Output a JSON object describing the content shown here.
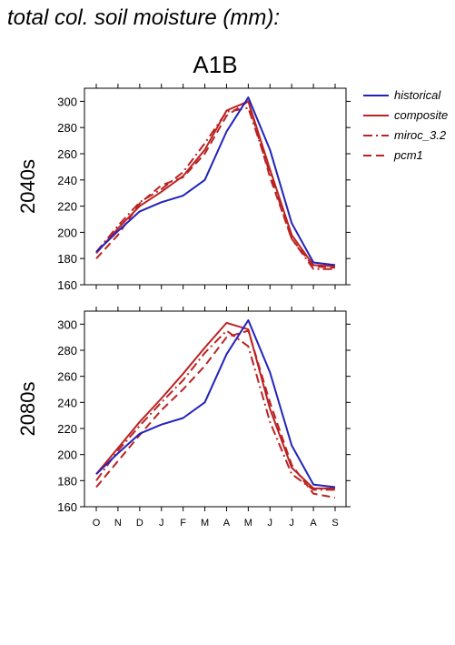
{
  "title": "total col. soil moisture (mm):",
  "scenario": "A1B",
  "months": [
    "O",
    "N",
    "D",
    "J",
    "F",
    "M",
    "A",
    "M",
    "J",
    "J",
    "A",
    "S"
  ],
  "colors": {
    "historical": "#2222bb",
    "model": "#bb2222"
  },
  "legend": [
    {
      "name": "historical",
      "color": "#2222bb",
      "dash": "solid"
    },
    {
      "name": "composite",
      "color": "#bb2222",
      "dash": "solid"
    },
    {
      "name": "miroc_3.2",
      "color": "#bb2222",
      "dash": "dashdot"
    },
    {
      "name": "pcm1",
      "color": "#bb2222",
      "dash": "dash"
    }
  ],
  "chart_data": [
    {
      "type": "line",
      "row_label": "2040s",
      "categories": [
        "O",
        "N",
        "D",
        "J",
        "F",
        "M",
        "A",
        "M",
        "J",
        "J",
        "A",
        "S"
      ],
      "ylim": [
        160,
        310
      ],
      "yticks": [
        160,
        180,
        200,
        220,
        240,
        260,
        280,
        300
      ],
      "series": [
        {
          "name": "historical",
          "values": [
            185,
            201,
            216,
            223,
            228,
            240,
            277,
            303,
            263,
            207,
            177,
            175
          ]
        },
        {
          "name": "composite",
          "values": [
            184,
            203,
            220,
            231,
            243,
            263,
            293,
            300,
            248,
            198,
            175,
            174
          ]
        },
        {
          "name": "miroc_3.2",
          "values": [
            185,
            205,
            223,
            233,
            246,
            268,
            292,
            295,
            245,
            195,
            172,
            172
          ]
        },
        {
          "name": "pcm1",
          "values": [
            180,
            198,
            222,
            236,
            242,
            260,
            289,
            300,
            242,
            195,
            174,
            173
          ]
        }
      ]
    },
    {
      "type": "line",
      "row_label": "2080s",
      "categories": [
        "O",
        "N",
        "D",
        "J",
        "F",
        "M",
        "A",
        "M",
        "J",
        "J",
        "A",
        "S"
      ],
      "ylim": [
        160,
        310
      ],
      "yticks": [
        160,
        180,
        200,
        220,
        240,
        260,
        280,
        300
      ],
      "series": [
        {
          "name": "historical",
          "values": [
            185,
            201,
            216,
            223,
            228,
            240,
            277,
            303,
            263,
            207,
            177,
            175
          ]
        },
        {
          "name": "composite",
          "values": [
            185,
            205,
            225,
            243,
            262,
            282,
            301,
            296,
            235,
            190,
            174,
            174
          ]
        },
        {
          "name": "miroc_3.2",
          "values": [
            180,
            203,
            222,
            240,
            257,
            278,
            295,
            283,
            225,
            185,
            173,
            173
          ]
        },
        {
          "name": "pcm1",
          "values": [
            175,
            195,
            215,
            234,
            250,
            268,
            290,
            295,
            240,
            192,
            170,
            167
          ]
        }
      ]
    }
  ]
}
